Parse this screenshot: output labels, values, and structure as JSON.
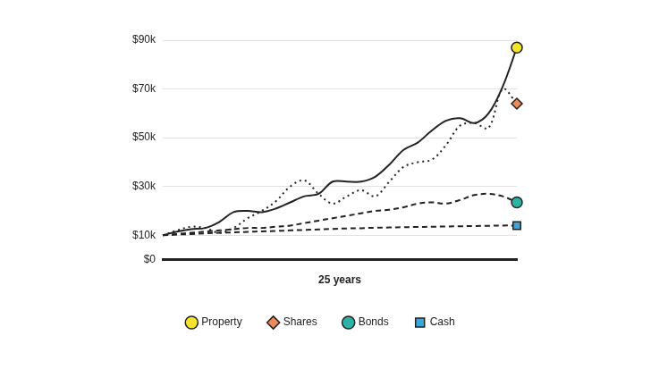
{
  "chart_data": {
    "type": "line",
    "x_label": "25 years",
    "categories": [
      null,
      null,
      null,
      null,
      null,
      null,
      null,
      null,
      null,
      null,
      null,
      null,
      null,
      null,
      null,
      null,
      null,
      null,
      null,
      null,
      null,
      null,
      null,
      null,
      null,
      null
    ],
    "series": [
      {
        "name": "Property",
        "color": "#f5e52a",
        "marker": "circle",
        "line_style": "solid",
        "values": [
          10000,
          11500,
          12500,
          13000,
          15500,
          19500,
          20000,
          19500,
          21000,
          23500,
          26000,
          27000,
          32000,
          32000,
          32000,
          34000,
          39000,
          45000,
          48000,
          53000,
          57000,
          58000,
          56000,
          60000,
          71000,
          87000
        ]
      },
      {
        "name": "Shares",
        "color": "#f08a5a",
        "marker": "diamond",
        "line_style": "dotted",
        "values": [
          10000,
          12000,
          13500,
          13000,
          11000,
          13000,
          17000,
          20000,
          24000,
          30000,
          32500,
          27000,
          23000,
          26000,
          28500,
          26000,
          32000,
          38000,
          40000,
          41000,
          47000,
          55000,
          56000,
          54000,
          70000,
          64000
        ]
      },
      {
        "name": "Bonds",
        "color": "#2ab3a6",
        "marker": "circle",
        "line_style": "dashed",
        "values": [
          10000,
          10500,
          11000,
          11500,
          12000,
          12500,
          13000,
          13000,
          13500,
          14000,
          15000,
          16000,
          17000,
          18000,
          19000,
          20000,
          20500,
          21500,
          23000,
          23500,
          23000,
          24500,
          26500,
          27000,
          26000,
          23500
        ]
      },
      {
        "name": "Cash",
        "color": "#3aa6dd",
        "marker": "square",
        "line_style": "dashed",
        "values": [
          10000,
          10300,
          10500,
          10800,
          11000,
          11200,
          11400,
          11600,
          11800,
          12000,
          12200,
          12400,
          12600,
          12800,
          12900,
          13100,
          13200,
          13300,
          13400,
          13500,
          13600,
          13700,
          13800,
          13900,
          14000,
          14000
        ]
      }
    ],
    "ylim": [
      0,
      90000
    ],
    "yticks": [
      {
        "value": 0,
        "label": "$0"
      },
      {
        "value": 10000,
        "label": "$10k"
      },
      {
        "value": 30000,
        "label": "$30k"
      },
      {
        "value": 50000,
        "label": "$50k"
      },
      {
        "value": 70000,
        "label": "$70k"
      },
      {
        "value": 90000,
        "label": "$90k"
      }
    ],
    "grid": true,
    "legend": "bottom",
    "tick_labels": "y"
  }
}
